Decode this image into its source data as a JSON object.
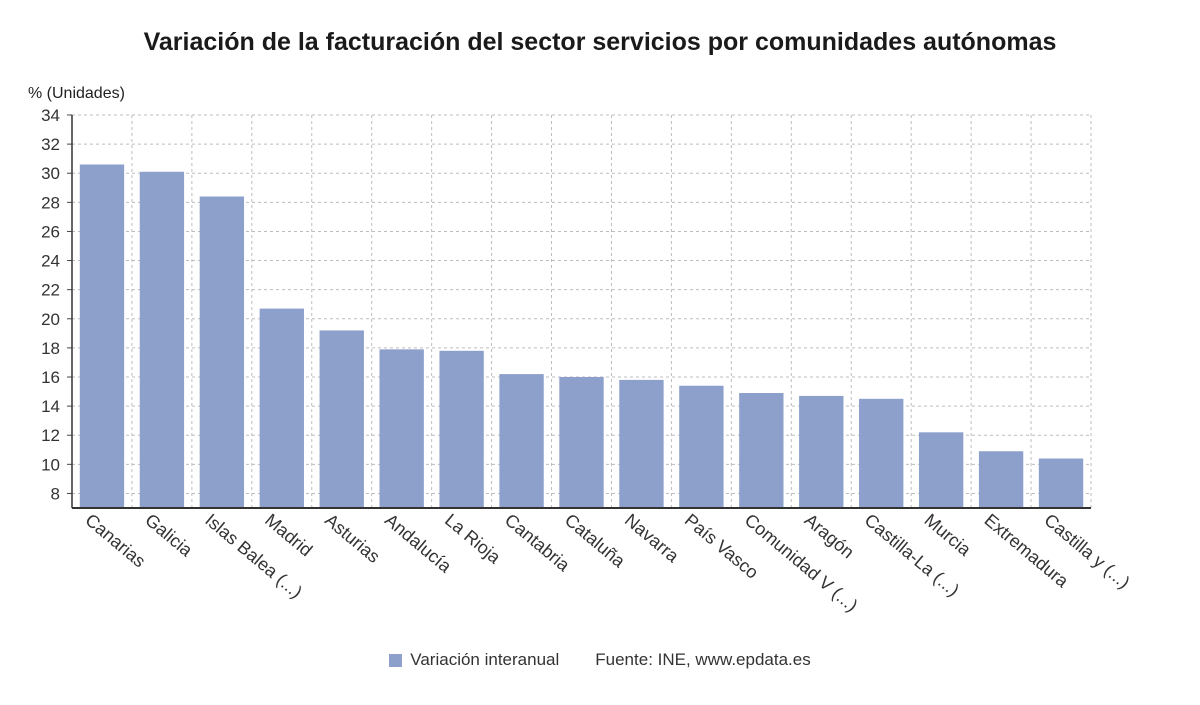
{
  "chart_data": {
    "type": "bar",
    "title": "Variación de la facturación del sector servicios por comunidades autónomas",
    "ylabel": "% (Unidades)",
    "xlabel": "",
    "ylim": [
      7,
      34
    ],
    "yticks": [
      8,
      10,
      12,
      14,
      16,
      18,
      20,
      22,
      24,
      26,
      28,
      30,
      32,
      34
    ],
    "grid": true,
    "legend_position": "bottom",
    "categories": [
      "Canarias",
      "Galicia",
      "Islas Balea (...)",
      "Madrid",
      "Asturias",
      "Andalucía",
      "La Rioja",
      "Cantabria",
      "Cataluña",
      "Navarra",
      "País Vasco",
      "Comunidad V (...)",
      "Aragón",
      "Castilla-La (...)",
      "Murcia",
      "Extremadura",
      "Castilla y (...)"
    ],
    "series": [
      {
        "name": "Variación interanual",
        "color": "#8da0cb",
        "values": [
          30.6,
          30.1,
          28.4,
          20.7,
          19.2,
          17.9,
          17.8,
          16.2,
          16.0,
          15.8,
          15.4,
          14.9,
          14.7,
          14.5,
          12.2,
          10.9,
          10.4
        ]
      }
    ]
  },
  "legend": {
    "series_label": "Variación interanual",
    "source": "Fuente: INE, www.epdata.es"
  }
}
